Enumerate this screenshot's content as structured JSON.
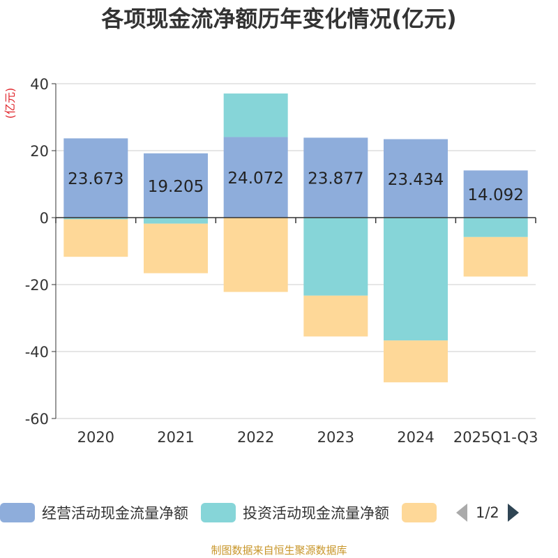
{
  "chart_data": {
    "type": "bar",
    "stacked": true,
    "title": "各项现金流净额历年变化情况(亿元)",
    "ylabel": "(亿元)",
    "ylim": [
      -60,
      40
    ],
    "yticks": [
      40,
      20,
      0,
      -20,
      -40,
      -60
    ],
    "grid": true,
    "categories": [
      "2020",
      "2021",
      "2022",
      "2023",
      "2024",
      "2025Q1-Q3"
    ],
    "series": [
      {
        "name": "经营活动现金流量净额",
        "color": "#8eaddb",
        "values": [
          23.673,
          19.205,
          24.072,
          23.877,
          23.434,
          14.092
        ],
        "show_labels": true
      },
      {
        "name": "投资活动现金流量净额",
        "color": "#86d5d8",
        "values": [
          -0.5,
          -1.8,
          13.0,
          -23.3,
          -36.7,
          -5.8
        ],
        "show_labels": false
      },
      {
        "name": "",
        "color": "#fed898",
        "values": [
          -11.2,
          -14.8,
          -22.2,
          -12.2,
          -12.5,
          -11.8
        ],
        "show_labels": false
      }
    ]
  },
  "legend": {
    "page": "1/2"
  },
  "source_note": "制图数据来自恒生聚源数据库"
}
